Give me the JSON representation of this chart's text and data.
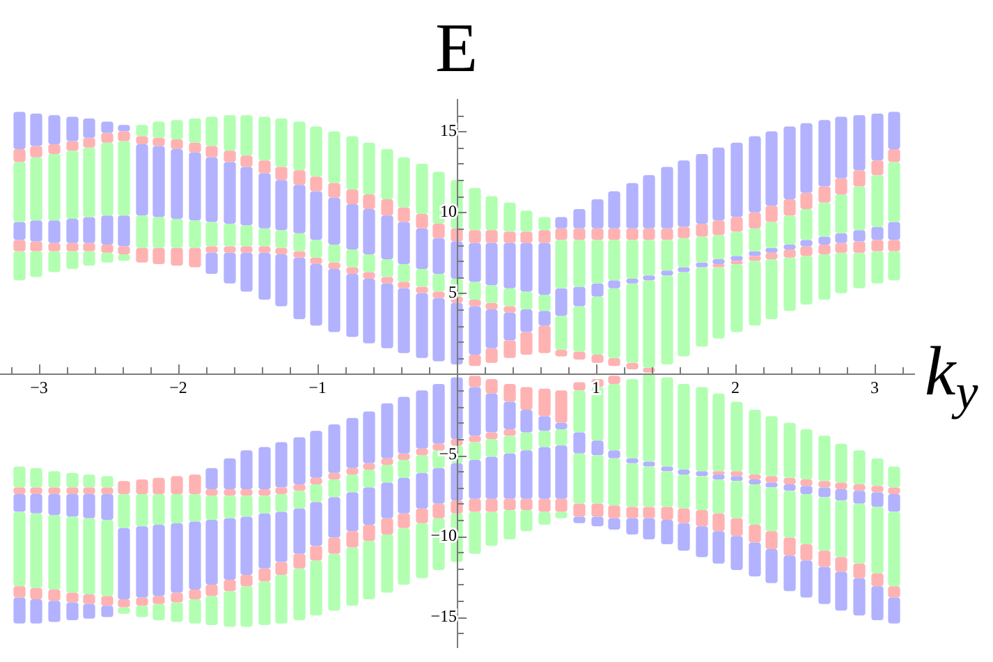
{
  "chart_data": {
    "type": "bar",
    "xlabel": "k$_{y}$",
    "ylabel": "E",
    "xlim": [
      -3.28,
      3.28
    ],
    "ylim": [
      -16.9,
      17
    ],
    "xticks": [
      {
        "value": -3.2,
        "label": null
      },
      {
        "value": -3,
        "label": "−3"
      },
      {
        "value": -2.8,
        "label": null
      },
      {
        "value": -2.6,
        "label": null
      },
      {
        "value": -2.4,
        "label": null
      },
      {
        "value": -2.2,
        "label": null
      },
      {
        "value": -2,
        "label": "−2"
      },
      {
        "value": -1.8,
        "label": null
      },
      {
        "value": -1.6,
        "label": null
      },
      {
        "value": -1.4,
        "label": null
      },
      {
        "value": -1.2,
        "label": null
      },
      {
        "value": -1,
        "label": "−1"
      },
      {
        "value": -0.8,
        "label": null
      },
      {
        "value": -0.6,
        "label": null
      },
      {
        "value": -0.4,
        "label": null
      },
      {
        "value": -0.2,
        "label": null
      },
      {
        "value": 0.2,
        "label": null
      },
      {
        "value": 0.4,
        "label": null
      },
      {
        "value": 0.6,
        "label": null
      },
      {
        "value": 0.8,
        "label": null
      },
      1,
      {
        "value": 1.2,
        "label": null
      },
      {
        "value": 1.4,
        "label": null
      },
      {
        "value": 1.6,
        "label": null
      },
      {
        "value": 1.8,
        "label": null
      },
      2,
      {
        "value": 2.2,
        "label": null
      },
      {
        "value": 2.4,
        "label": null
      },
      {
        "value": 2.6,
        "label": null
      },
      {
        "value": 2.8,
        "label": null
      },
      3,
      {
        "value": 3.2,
        "label": null
      }
    ],
    "yticks": [
      {
        "value": -16,
        "label": null
      },
      {
        "value": -15,
        "label": "−15"
      },
      {
        "value": -14,
        "label": null
      },
      {
        "value": -13,
        "label": null
      },
      {
        "value": -12,
        "label": null
      },
      {
        "value": -11,
        "label": null
      },
      {
        "value": -10,
        "label": "−10"
      },
      {
        "value": -9,
        "label": null
      },
      {
        "value": -8,
        "label": null
      },
      {
        "value": -7,
        "label": null
      },
      {
        "value": -6,
        "label": null
      },
      {
        "value": -5,
        "label": "−5"
      },
      {
        "value": -4,
        "label": null
      },
      {
        "value": -3,
        "label": null
      },
      {
        "value": -2,
        "label": null
      },
      {
        "value": -1,
        "label": null
      },
      {
        "value": 1,
        "label": null
      },
      {
        "value": 2,
        "label": null
      },
      {
        "value": 3,
        "label": null
      },
      {
        "value": 4,
        "label": null
      },
      5,
      {
        "value": 6,
        "label": null
      },
      {
        "value": 7,
        "label": null
      },
      {
        "value": 8,
        "label": null
      },
      {
        "value": 9,
        "label": null
      },
      10,
      {
        "value": 11,
        "label": null
      },
      {
        "value": 12,
        "label": null
      },
      {
        "value": 13,
        "label": null
      },
      {
        "value": 14,
        "label": null
      },
      15,
      {
        "value": 16,
        "label": null
      }
    ],
    "x": [
      -3.14,
      -3.02,
      -2.89,
      -2.76,
      -2.64,
      -2.51,
      -2.39,
      -2.26,
      -2.14,
      -2.01,
      -1.88,
      -1.76,
      -1.63,
      -1.51,
      -1.38,
      -1.26,
      -1.13,
      -1.01,
      -0.88,
      -0.75,
      -0.63,
      -0.5,
      -0.38,
      -0.25,
      -0.13,
      0,
      0.13,
      0.25,
      0.38,
      0.5,
      0.63,
      0.75,
      0.88,
      1.01,
      1.13,
      1.26,
      1.38,
      1.51,
      1.63,
      1.76,
      1.88,
      2.01,
      2.14,
      2.26,
      2.39,
      2.51,
      2.64,
      2.76,
      2.89,
      3.02,
      3.14
    ],
    "series": [
      {
        "color": "#b2b2ff",
        "base": [
          13.9,
          14.1,
          14.2,
          14.4,
          14.6,
          14.9,
          15.0,
          9.8,
          9.7,
          9.6,
          9.5,
          9.4,
          9.3,
          9.2,
          9.0,
          8.9,
          8.7,
          8.3,
          8.0,
          7.7,
          7.4,
          7.1,
          6.8,
          6.5,
          6.2,
          5.9,
          5.7,
          5.5,
          5.3,
          5.1,
          4.9,
          9.0,
          9.0,
          9.0,
          9.0,
          9.0,
          9.0,
          9.0,
          9.1,
          9.3,
          9.5,
          9.7,
          10.0,
          10.4,
          10.8,
          11.2,
          11.6,
          12.1,
          12.6,
          13.2,
          13.9
        ],
        "values": [
          2.3,
          2.0,
          1.8,
          1.5,
          1.2,
          0.7,
          0.4,
          4.4,
          4.4,
          4.3,
          4.2,
          4.0,
          3.8,
          3.6,
          3.4,
          3.1,
          3.0,
          3.0,
          2.9,
          2.8,
          2.8,
          2.7,
          2.6,
          2.5,
          2.2,
          2.3,
          2.4,
          2.6,
          2.8,
          3.0,
          3.2,
          0.7,
          1.2,
          1.8,
          2.3,
          2.8,
          3.3,
          3.8,
          4.1,
          4.3,
          4.5,
          4.6,
          4.7,
          4.6,
          4.5,
          4.3,
          4.1,
          3.8,
          3.4,
          2.9,
          2.3
        ]
      },
      {
        "color": "#ffb2b2",
        "base": [
          13.1,
          13.4,
          13.6,
          13.8,
          14.0,
          14.3,
          14.4,
          14.2,
          14.1,
          13.9,
          13.7,
          13.4,
          13.1,
          12.8,
          12.4,
          12.0,
          11.7,
          11.3,
          10.9,
          10.5,
          10.2,
          9.8,
          9.4,
          9.0,
          8.4,
          8.2,
          8.1,
          8.1,
          8.1,
          8.1,
          8.1,
          8.3,
          8.3,
          8.3,
          8.3,
          8.3,
          8.3,
          8.3,
          8.4,
          8.5,
          8.6,
          8.8,
          9.0,
          9.4,
          9.8,
          10.2,
          10.6,
          11.1,
          11.6,
          12.3,
          13.1
        ],
        "values": [
          0.8,
          0.7,
          0.6,
          0.6,
          0.6,
          0.6,
          0.6,
          0.5,
          0.5,
          0.6,
          0.6,
          0.7,
          0.7,
          0.7,
          0.8,
          0.8,
          0.9,
          0.9,
          0.9,
          0.9,
          0.9,
          1.0,
          0.9,
          0.9,
          0.9,
          0.8,
          0.8,
          0.8,
          0.7,
          0.7,
          0.8,
          0.7,
          0.7,
          0.7,
          0.7,
          0.7,
          0.7,
          0.7,
          0.7,
          0.8,
          0.9,
          0.9,
          1.0,
          1.0,
          1.0,
          1.0,
          1.0,
          1.0,
          1.0,
          0.9,
          0.8
        ]
      },
      {
        "color": "#b2ffb2",
        "base": [
          9.4,
          9.5,
          9.5,
          9.6,
          9.7,
          9.8,
          9.8,
          14.7,
          14.6,
          14.5,
          14.3,
          14.1,
          13.8,
          13.5,
          13.2,
          12.8,
          12.6,
          12.2,
          11.8,
          11.4,
          11.1,
          10.8,
          10.3,
          9.9,
          9.3,
          9.0,
          8.9,
          8.9,
          8.8,
          8.8,
          8.9,
          5.3,
          5.4,
          5.6,
          5.8,
          5.9,
          6.1,
          6.4,
          6.6,
          6.9,
          7.1,
          7.3,
          7.6,
          7.8,
          8.0,
          8.3,
          8.5,
          8.7,
          8.9,
          9.1,
          9.4
        ],
        "values": [
          3.7,
          3.9,
          4.1,
          4.2,
          4.3,
          4.5,
          4.6,
          0.7,
          1.0,
          1.2,
          1.5,
          1.8,
          2.2,
          2.5,
          2.7,
          3.0,
          3.0,
          3.1,
          3.2,
          3.3,
          3.2,
          3.1,
          3.1,
          3.1,
          3.2,
          3.0,
          2.6,
          2.1,
          1.8,
          1.3,
          0.8,
          3.0,
          2.9,
          2.7,
          2.5,
          2.4,
          2.2,
          1.9,
          1.8,
          1.6,
          1.5,
          1.5,
          1.4,
          1.6,
          1.8,
          1.9,
          2.1,
          2.4,
          2.7,
          3.2,
          3.7
        ]
      },
      {
        "color": "#b2b2ff",
        "base": [
          8.3,
          8.2,
          8.1,
          8.1,
          8.1,
          8.0,
          7.9,
          null,
          null,
          null,
          null,
          6.2,
          5.6,
          5.1,
          4.6,
          4.2,
          3.4,
          3.0,
          2.6,
          2.3,
          1.9,
          1.6,
          1.3,
          1.0,
          0.8,
          0.6,
          1.2,
          1.6,
          2.1,
          2.6,
          3.0,
          3.6,
          4.2,
          4.8,
          5.3,
          5.6,
          5.8,
          6.1,
          6.3,
          6.6,
          6.8,
          7.0,
          7.3,
          7.5,
          7.7,
          7.9,
          8.0,
          8.1,
          8.2,
          8.3,
          8.3
        ],
        "values": [
          1.1,
          1.3,
          1.4,
          1.5,
          1.6,
          1.8,
          1.9,
          null,
          null,
          null,
          null,
          1.3,
          1.9,
          2.4,
          2.9,
          3.2,
          3.8,
          3.8,
          3.9,
          3.9,
          4.0,
          4.0,
          4.0,
          4.0,
          3.9,
          3.8,
          3.0,
          2.4,
          1.7,
          1.4,
          0.9,
          1.7,
          1.2,
          0.8,
          0.5,
          0.3,
          0.3,
          0.3,
          0.3,
          0.3,
          0.3,
          0.3,
          0.3,
          0.3,
          0.3,
          0.4,
          0.5,
          0.6,
          0.7,
          0.8,
          1.1
        ]
      },
      {
        "color": "#ffb2b2",
        "base": [
          7.6,
          7.6,
          7.6,
          7.6,
          7.6,
          7.5,
          7.4,
          6.9,
          6.8,
          6.7,
          6.6,
          7.5,
          7.5,
          7.5,
          7.5,
          7.4,
          7.2,
          6.8,
          6.5,
          6.2,
          5.9,
          5.6,
          5.3,
          5.0,
          4.7,
          4.4,
          4.2,
          4.0,
          3.8,
          null,
          null,
          null,
          null,
          null,
          null,
          null,
          null,
          null,
          null,
          null,
          6.6,
          6.8,
          7.0,
          7.1,
          7.2,
          7.3,
          7.4,
          7.5,
          7.5,
          7.6,
          7.6
        ],
        "values": [
          0.7,
          0.6,
          0.5,
          0.5,
          0.5,
          0.5,
          0.5,
          0.9,
          1.0,
          1.1,
          1.2,
          0.4,
          0.4,
          0.4,
          0.4,
          0.4,
          0.4,
          0.4,
          0.4,
          0.4,
          0.4,
          0.4,
          0.4,
          0.4,
          0.4,
          0.4,
          0.4,
          0.4,
          0.4,
          null,
          null,
          null,
          null,
          null,
          null,
          null,
          null,
          null,
          null,
          null,
          0.2,
          0.2,
          0.3,
          0.4,
          0.5,
          0.6,
          0.6,
          0.6,
          0.7,
          0.7,
          0.7
        ]
      },
      {
        "color": "#b2ffb2",
        "base": [
          5.8,
          6.0,
          6.3,
          6.5,
          6.7,
          6.9,
          7.0,
          7.8,
          7.8,
          7.8,
          7.8,
          7.9,
          7.9,
          7.9,
          7.9,
          7.8,
          7.6,
          7.2,
          6.9,
          6.6,
          6.3,
          6.0,
          5.7,
          5.4,
          5.1,
          4.8,
          4.6,
          4.4,
          4.2,
          4.0,
          3.9,
          1.5,
          1.4,
          1.2,
          1.0,
          0.7,
          0.4,
          0.6,
          1.1,
          1.7,
          2.2,
          2.6,
          3.0,
          3.4,
          3.9,
          4.3,
          4.6,
          5.0,
          5.3,
          5.6,
          5.8
        ],
        "values": [
          1.8,
          1.6,
          1.3,
          1.1,
          0.9,
          0.6,
          0.4,
          2.0,
          1.9,
          1.8,
          1.7,
          1.5,
          1.4,
          1.3,
          1.1,
          1.1,
          1.1,
          1.1,
          1.1,
          1.1,
          1.1,
          1.1,
          1.1,
          1.1,
          1.1,
          1.1,
          1.1,
          1.1,
          1.1,
          1.1,
          1.0,
          2.1,
          2.8,
          3.6,
          4.3,
          4.9,
          5.4,
          5.5,
          5.2,
          4.9,
          4.4,
          4.2,
          4.0,
          3.7,
          3.3,
          3.0,
          2.8,
          2.5,
          2.2,
          2.0,
          1.8
        ]
      },
      {
        "color": "#ffb2b2",
        "base": [
          null,
          null,
          null,
          null,
          null,
          null,
          null,
          null,
          null,
          null,
          null,
          null,
          null,
          null,
          null,
          null,
          null,
          null,
          null,
          null,
          null,
          null,
          null,
          null,
          null,
          null,
          0.5,
          0.7,
          1.0,
          1.2,
          1.3,
          1.1,
          0.9,
          0.7,
          0.5,
          0.3,
          0.1,
          null,
          null,
          null,
          null,
          null,
          null,
          null,
          null,
          null,
          null,
          null,
          null,
          null,
          null
        ],
        "values": [
          null,
          null,
          null,
          null,
          null,
          null,
          null,
          null,
          null,
          null,
          null,
          null,
          null,
          null,
          null,
          null,
          null,
          null,
          null,
          null,
          null,
          null,
          null,
          null,
          null,
          null,
          0.7,
          0.9,
          1.1,
          1.4,
          1.7,
          0.4,
          0.5,
          0.5,
          0.5,
          0.4,
          0.3,
          null,
          null,
          null,
          null,
          null,
          null,
          null,
          null,
          null,
          null,
          null,
          null,
          null,
          null
        ]
      },
      {
        "color": "#b2b2ff",
        "base": [
          -15.4,
          -15.4,
          -15.3,
          -15.2,
          -15.1,
          -15.0,
          -13.9,
          -13.8,
          -13.7,
          -13.5,
          -13.3,
          -13.0,
          -12.7,
          -12.4,
          -12.0,
          -11.6,
          -11.1,
          -10.6,
          -10.1,
          -9.7,
          -9.3,
          -8.9,
          -8.6,
          -8.3,
          -8.0,
          -7.8,
          -7.7,
          -7.7,
          -7.7,
          -7.7,
          -7.7,
          -7.7,
          -9.2,
          -9.4,
          -9.6,
          -9.9,
          -10.2,
          -10.5,
          -10.9,
          -11.3,
          -11.7,
          -12.1,
          -12.5,
          -12.9,
          -13.4,
          -13.8,
          -14.2,
          -14.6,
          -14.9,
          -15.2,
          -15.4
        ],
        "values": [
          1.6,
          1.5,
          1.3,
          1.1,
          0.9,
          0.7,
          4.4,
          4.4,
          4.4,
          4.3,
          4.2,
          4.0,
          3.8,
          3.6,
          3.4,
          3.1,
          2.8,
          2.7,
          2.5,
          2.4,
          2.3,
          2.2,
          2.2,
          2.2,
          2.2,
          2.3,
          2.4,
          2.6,
          2.8,
          3.0,
          3.2,
          3.3,
          0.4,
          0.6,
          0.7,
          1.0,
          1.3,
          1.5,
          1.7,
          1.9,
          2.0,
          2.1,
          2.1,
          2.1,
          2.2,
          2.3,
          2.3,
          2.4,
          2.3,
          2.1,
          1.6
        ]
      },
      {
        "color": "#ffb2b2",
        "base": [
          -13.8,
          -13.9,
          -14.0,
          -14.1,
          -14.2,
          -14.3,
          -14.4,
          -14.3,
          -14.2,
          -14.1,
          -13.9,
          -13.7,
          -13.4,
          -13.1,
          -12.8,
          -12.4,
          -12.0,
          -11.5,
          -11.1,
          -10.7,
          -10.3,
          -9.9,
          -9.5,
          -9.2,
          -8.9,
          -8.6,
          -8.5,
          -8.5,
          -8.4,
          -8.4,
          -8.5,
          -8.5,
          -8.8,
          -8.8,
          -8.9,
          -8.9,
          -8.9,
          -9.0,
          -9.2,
          -9.4,
          -9.7,
          -10.0,
          -10.4,
          -10.8,
          -11.2,
          -11.5,
          -11.9,
          -12.2,
          -12.6,
          -13.1,
          -13.8
        ],
        "values": [
          0.7,
          0.7,
          0.7,
          0.6,
          0.6,
          0.6,
          0.5,
          0.5,
          0.5,
          0.6,
          0.6,
          0.7,
          0.7,
          0.7,
          0.8,
          0.8,
          0.9,
          0.9,
          1.0,
          1.0,
          1.0,
          1.0,
          0.9,
          0.9,
          0.9,
          0.8,
          0.8,
          0.8,
          0.7,
          0.7,
          0.8,
          0.8,
          0.8,
          0.8,
          0.8,
          0.7,
          0.7,
          0.8,
          0.9,
          1.0,
          1.1,
          1.1,
          1.1,
          1.1,
          1.1,
          1.0,
          1.0,
          0.9,
          0.9,
          0.8,
          0.7
        ]
      },
      {
        "color": "#b2ffb2",
        "base": [
          -13.1,
          -13.2,
          -13.3,
          -13.5,
          -13.6,
          -13.7,
          -14.8,
          -15.0,
          -15.2,
          -15.3,
          -15.4,
          -15.5,
          -15.6,
          -15.6,
          -15.5,
          -15.4,
          -15.2,
          -14.9,
          -14.6,
          -14.3,
          -13.9,
          -13.5,
          -13.0,
          -12.6,
          -12.1,
          -11.6,
          -11.1,
          -10.6,
          -10.2,
          -9.7,
          -9.3,
          -8.9,
          -8.0,
          -8.0,
          -8.1,
          -8.2,
          -8.2,
          -8.2,
          -8.3,
          -8.4,
          -8.6,
          -8.9,
          -9.3,
          -9.7,
          -10.1,
          -10.5,
          -10.9,
          -11.3,
          -11.7,
          -12.3,
          -13.1
        ],
        "values": [
          4.6,
          4.6,
          4.6,
          4.7,
          4.7,
          4.7,
          0.4,
          0.7,
          1.0,
          1.2,
          1.5,
          1.8,
          2.2,
          2.5,
          2.7,
          3.0,
          3.2,
          3.4,
          3.5,
          3.6,
          3.6,
          3.6,
          3.5,
          3.4,
          3.2,
          3.0,
          2.6,
          2.1,
          1.8,
          1.3,
          0.8,
          0.4,
          3.1,
          3.0,
          2.9,
          2.7,
          2.5,
          2.2,
          2.1,
          2.1,
          2.1,
          2.3,
          2.5,
          2.7,
          2.9,
          3.1,
          3.3,
          3.5,
          3.7,
          4.1,
          4.6
        ]
      },
      {
        "color": "#b2b2ff",
        "base": [
          -8.5,
          -8.6,
          -8.7,
          -8.8,
          -8.9,
          -9.0,
          null,
          null,
          null,
          null,
          null,
          -7.1,
          -7.1,
          -7.1,
          -7.1,
          -7.0,
          -6.8,
          -6.4,
          -6.1,
          -5.8,
          -5.5,
          -5.2,
          -4.9,
          -4.6,
          -4.3,
          -4.0,
          -3.8,
          -3.6,
          -3.4,
          -3.6,
          -3.5,
          -3.4,
          -4.9,
          -5.0,
          -5.2,
          -5.5,
          -5.7,
          -6.0,
          -6.2,
          -6.3,
          -6.5,
          -6.6,
          -6.8,
          -7.0,
          -7.2,
          -7.4,
          -7.6,
          -7.8,
          -8.0,
          -8.2,
          -8.5
        ],
        "values": [
          1.1,
          1.2,
          1.3,
          1.4,
          1.5,
          1.6,
          null,
          null,
          null,
          null,
          null,
          1.3,
          1.9,
          2.4,
          2.6,
          2.8,
          2.9,
          2.9,
          3.0,
          3.1,
          3.2,
          3.4,
          3.5,
          3.6,
          3.7,
          3.8,
          3.0,
          2.4,
          1.7,
          1.4,
          0.9,
          0.4,
          1.3,
          0.9,
          0.5,
          0.3,
          0.3,
          0.3,
          0.3,
          0.3,
          0.3,
          0.3,
          0.3,
          0.3,
          0.4,
          0.5,
          0.6,
          0.7,
          0.8,
          0.9,
          1.1
        ]
      },
      {
        "color": "#ffb2b2",
        "base": [
          -7.4,
          -7.4,
          -7.4,
          -7.4,
          -7.4,
          -7.4,
          -7.4,
          -7.4,
          -7.4,
          -7.4,
          -7.4,
          -7.5,
          -7.5,
          -7.5,
          -7.5,
          -7.4,
          -7.2,
          -6.8,
          -6.5,
          -6.2,
          -5.9,
          -5.6,
          -5.3,
          -5.0,
          -4.7,
          -4.4,
          -4.2,
          -4.0,
          -3.8,
          null,
          null,
          null,
          null,
          null,
          null,
          null,
          null,
          null,
          null,
          null,
          -6.2,
          -6.3,
          -6.5,
          -6.7,
          -6.8,
          -6.9,
          -7.0,
          -7.1,
          -7.2,
          -7.3,
          -7.4
        ],
        "values": [
          0.4,
          0.4,
          0.4,
          0.4,
          0.4,
          0.4,
          0.8,
          0.9,
          1.0,
          1.1,
          1.2,
          0.4,
          0.4,
          0.4,
          0.4,
          0.4,
          0.4,
          0.4,
          0.4,
          0.4,
          0.4,
          0.4,
          0.4,
          0.4,
          0.4,
          0.4,
          0.4,
          0.4,
          0.4,
          null,
          null,
          null,
          null,
          null,
          null,
          null,
          null,
          null,
          null,
          null,
          0.2,
          0.3,
          0.3,
          0.4,
          0.4,
          0.4,
          0.4,
          0.4,
          0.4,
          0.4,
          0.4
        ]
      },
      {
        "color": "#b2ffb2",
        "base": [
          -7.0,
          -7.0,
          -7.0,
          -7.0,
          -7.0,
          -7.0,
          -9.5,
          -9.4,
          -9.3,
          -9.2,
          -9.1,
          -9.0,
          -8.9,
          -8.8,
          -8.6,
          -8.5,
          -8.3,
          -7.9,
          -7.6,
          -7.3,
          -7.0,
          -6.7,
          -6.4,
          -6.1,
          -5.8,
          -5.5,
          -5.3,
          -5.1,
          -4.9,
          -4.7,
          -4.5,
          -4.4,
          -3.6,
          -4.1,
          -4.7,
          -5.2,
          -5.4,
          -5.7,
          -5.9,
          -6.0,
          -6.0,
          -6.0,
          -6.2,
          -6.3,
          -6.4,
          -6.5,
          -6.6,
          -6.7,
          -6.8,
          -6.9,
          -7.0
        ],
        "values": [
          1.3,
          1.2,
          1.0,
          0.9,
          0.8,
          0.7,
          2.1,
          2.0,
          1.9,
          1.8,
          1.7,
          1.5,
          1.4,
          1.3,
          1.1,
          1.1,
          1.1,
          1.1,
          1.1,
          1.1,
          1.1,
          1.1,
          1.1,
          1.1,
          1.1,
          1.1,
          1.1,
          1.1,
          1.1,
          1.1,
          1.0,
          1.0,
          2.6,
          3.3,
          4.1,
          4.9,
          5.4,
          5.5,
          5.3,
          5.2,
          4.8,
          4.3,
          4.0,
          3.7,
          3.4,
          3.1,
          2.8,
          2.4,
          2.1,
          1.7,
          1.3
        ]
      },
      {
        "color": "#ffb2b2",
        "base": [
          null,
          null,
          null,
          null,
          null,
          null,
          null,
          null,
          null,
          null,
          null,
          null,
          null,
          null,
          null,
          null,
          null,
          null,
          null,
          null,
          null,
          null,
          null,
          null,
          null,
          null,
          -0.8,
          -1.2,
          -1.7,
          -2.2,
          -2.6,
          -3.0,
          -1.0,
          -0.8,
          -0.6,
          null,
          null,
          null,
          null,
          null,
          null,
          null,
          null,
          null,
          null,
          null,
          null,
          null,
          null,
          null,
          null
        ],
        "values": [
          null,
          null,
          null,
          null,
          null,
          null,
          null,
          null,
          null,
          null,
          null,
          null,
          null,
          null,
          null,
          null,
          null,
          null,
          null,
          null,
          null,
          null,
          null,
          null,
          null,
          null,
          0.7,
          0.9,
          1.1,
          1.4,
          1.7,
          2.0,
          0.5,
          0.5,
          0.5,
          null,
          null,
          null,
          null,
          null,
          null,
          null,
          null,
          null,
          null,
          null,
          null,
          null,
          null,
          null,
          null
        ]
      }
    ]
  }
}
